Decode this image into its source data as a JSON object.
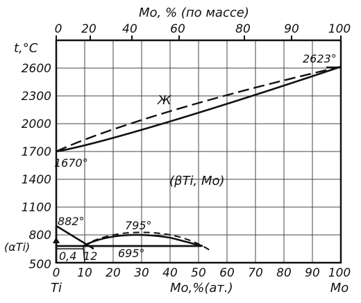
{
  "diagram": {
    "top_axis_title": "Mo, % (по массе)",
    "bottom_axis_title": "Mo,%(ат.)",
    "y_axis_title": "t,°C",
    "left_end_label": "Ti",
    "right_end_label": "Mo",
    "top_ticks": [
      "0",
      "20",
      "40",
      "60",
      "80",
      "90",
      "100"
    ],
    "bottom_ticks": [
      "0",
      "10",
      "20",
      "30",
      "40",
      "50",
      "60",
      "70",
      "80",
      "90",
      "100"
    ],
    "y_ticks": [
      "2600",
      "2300",
      "2000",
      "1700",
      "1400",
      "1100",
      "800",
      "500"
    ],
    "annotations": {
      "liquid": "Ж",
      "mo_melting": "2623°",
      "ti_melting": "1670°",
      "beta_region": "(βTi, Mo)",
      "transition_882": "882°",
      "peak_795": "795°",
      "eutectoid_695": "695°",
      "alpha_region": "(αTi)",
      "comp_04": "0,4",
      "comp_12": "12"
    },
    "colors": {
      "ink": "#111111",
      "grid": "#444444",
      "background": "#ffffff"
    }
  }
}
